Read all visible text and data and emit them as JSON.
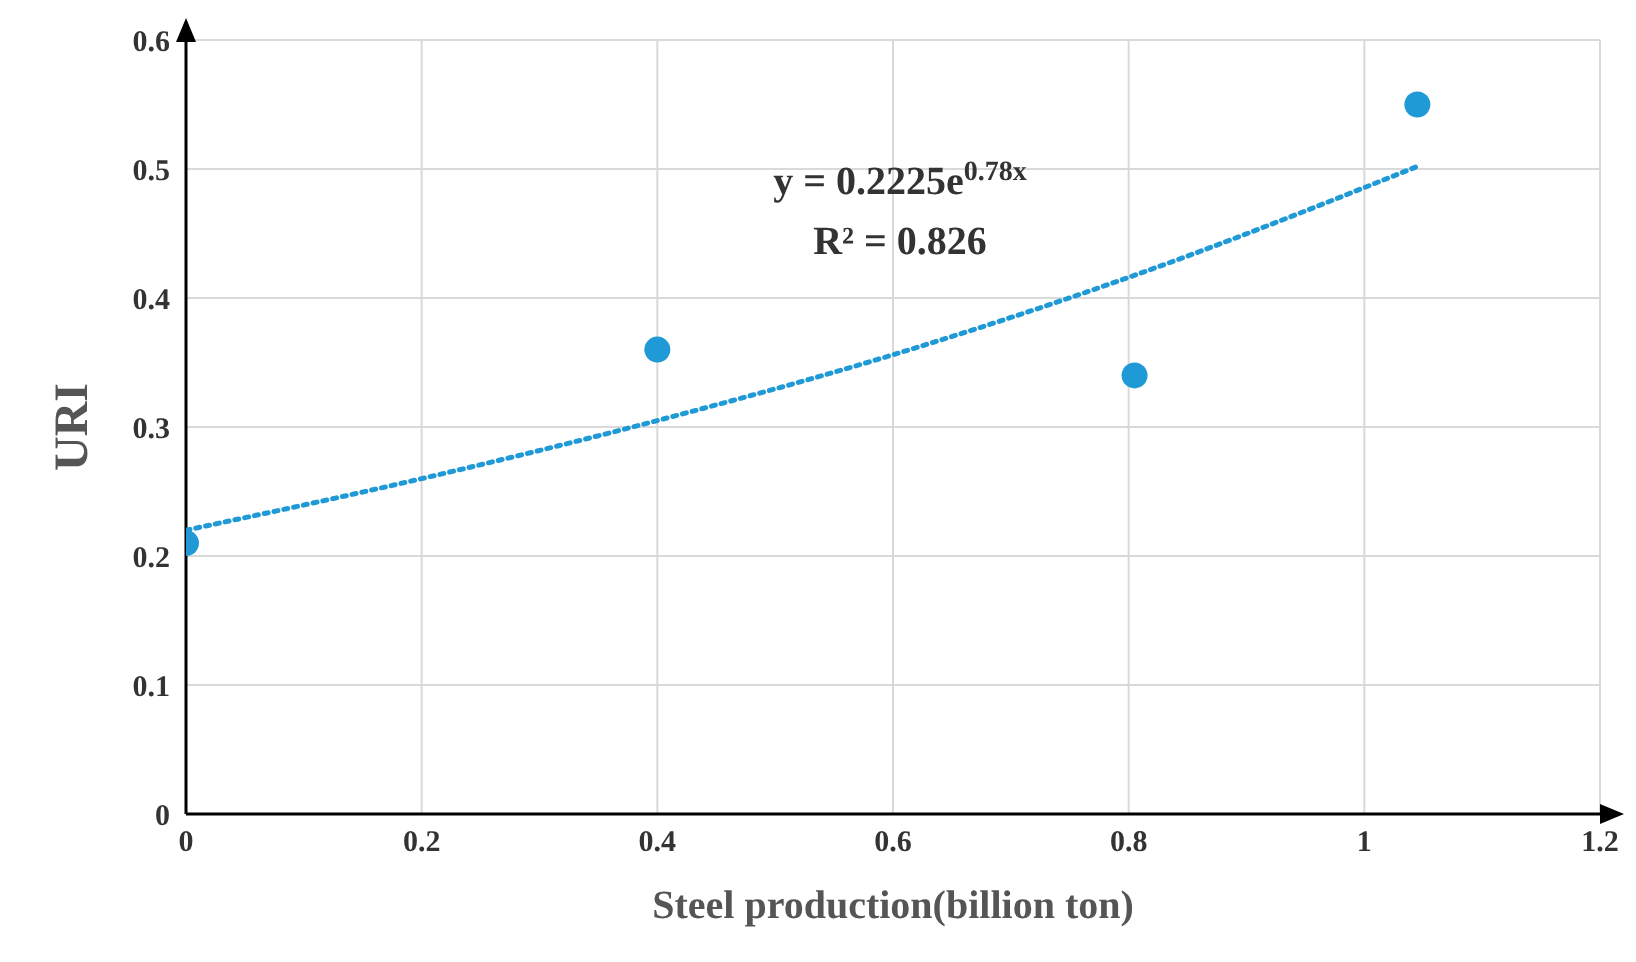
{
  "chart_data": {
    "type": "scatter",
    "xlabel": "Steel production(billion ton)",
    "ylabel": "URI",
    "xlim": [
      0,
      1.2
    ],
    "xticks": [
      0,
      0.2,
      0.4,
      0.6,
      0.8,
      1,
      1.2
    ],
    "ylim": [
      0,
      0.6
    ],
    "yticks": [
      0,
      0.1,
      0.2,
      0.3,
      0.4,
      0.5,
      0.6
    ],
    "grid": true,
    "annotations": [
      "y = 0.2225e$^{0.78x}$",
      "R² = 0.826"
    ],
    "series": [
      {
        "type": "scatter",
        "color": "#1f9ad6",
        "marker": "circle",
        "x": [
          0,
          0.4,
          0.805,
          1.045
        ],
        "values": [
          0.21,
          0.36,
          0.34,
          0.55
        ]
      },
      {
        "type": "line",
        "color": "#1f9ad6",
        "marker": "none",
        "line_style": "dotted",
        "x": [
          0,
          0.2,
          0.4,
          0.6,
          0.8,
          1.045
        ],
        "values": [
          0.22,
          0.26,
          0.305,
          0.356,
          0.416,
          0.502
        ]
      }
    ]
  }
}
